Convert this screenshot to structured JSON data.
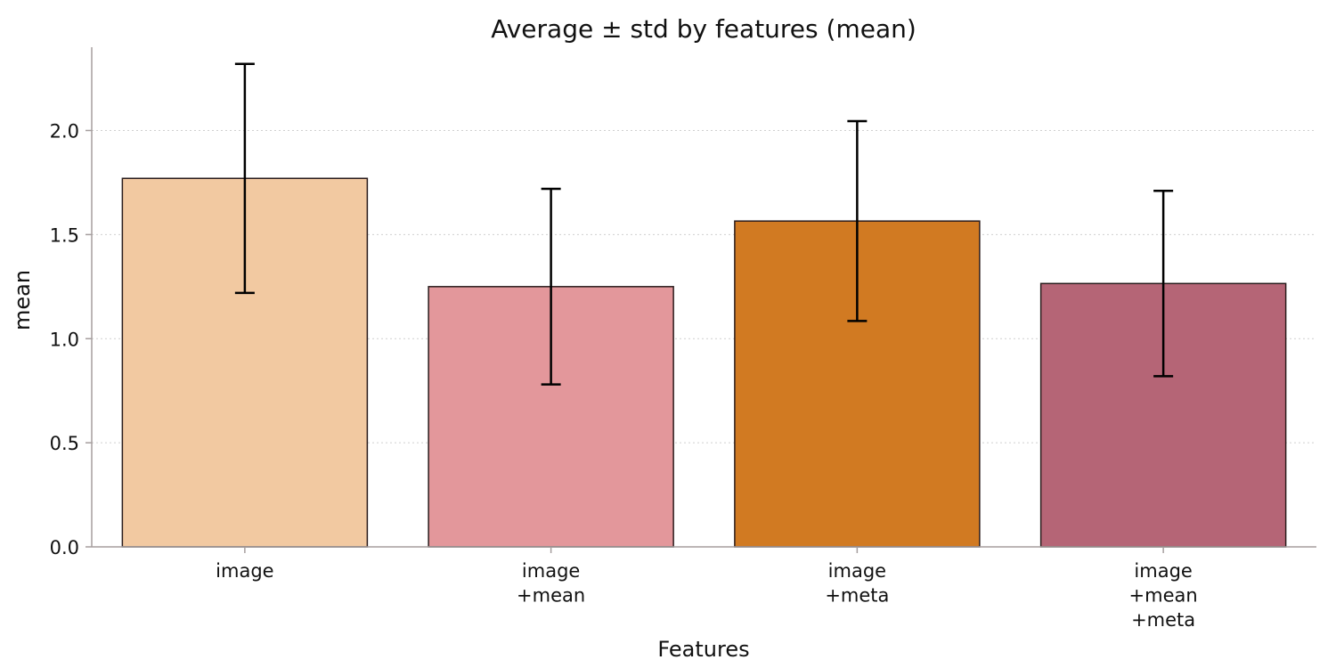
{
  "chart_data": {
    "type": "bar",
    "title": "Average ± std by features (mean)",
    "xlabel": "Features",
    "ylabel": "mean",
    "categories": [
      [
        "image"
      ],
      [
        "image",
        "+mean"
      ],
      [
        "image",
        "+meta"
      ],
      [
        "image",
        "+mean",
        "+meta"
      ]
    ],
    "values": [
      1.77,
      1.25,
      1.565,
      1.265
    ],
    "errors": [
      0.55,
      0.47,
      0.48,
      0.445
    ],
    "colors": [
      "#f2c9a1",
      "#e3979b",
      "#d17a22",
      "#b56576"
    ],
    "ylim": [
      0,
      2.4
    ],
    "yticks": [
      "0.0",
      "0.5",
      "1.0",
      "1.5",
      "2.0"
    ],
    "grid": "y-dotted",
    "legend": "none"
  }
}
